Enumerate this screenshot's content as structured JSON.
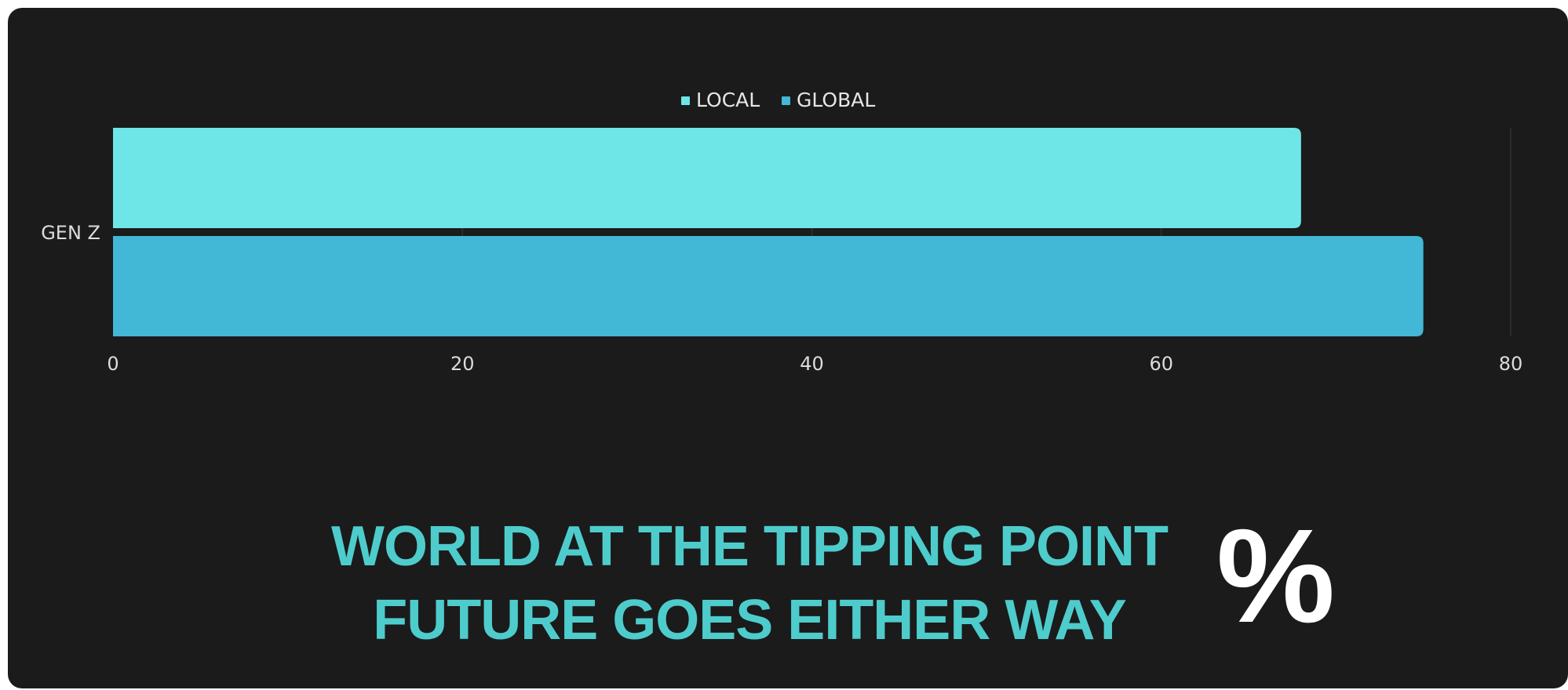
{
  "chart_data": {
    "type": "bar",
    "orientation": "horizontal",
    "categories": [
      "GEN Z"
    ],
    "series": [
      {
        "name": "LOCAL",
        "values": [
          68
        ],
        "color": "#6ee6e8"
      },
      {
        "name": "GLOBAL",
        "values": [
          75
        ],
        "color": "#43b7d6"
      }
    ],
    "xlim": [
      0,
      80
    ],
    "xticks": [
      "0",
      "20",
      "40",
      "60",
      "80"
    ],
    "legend_position": "top-center",
    "grid": true
  },
  "headline": {
    "line1": "WORLD AT THE TIPPING POINT",
    "line2": "FUTURE GOES EITHER WAY"
  },
  "icon": {
    "name": "percent-icon",
    "glyph": "%"
  }
}
